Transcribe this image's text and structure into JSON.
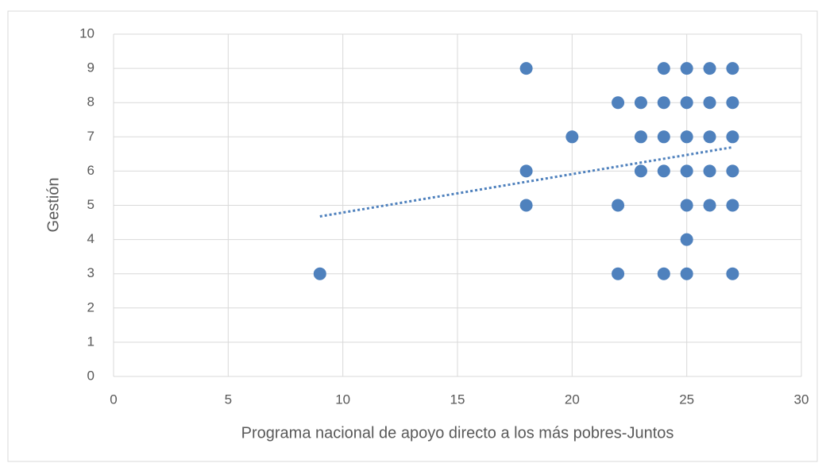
{
  "chart_data": {
    "type": "scatter",
    "xlabel": "Programa nacional de apoyo directo a los más pobres-Juntos",
    "ylabel": "Gestión",
    "x": [
      18,
      24,
      25,
      26,
      27,
      22,
      23,
      24,
      25,
      26,
      27,
      20,
      23,
      24,
      25,
      26,
      27,
      18,
      23,
      24,
      25,
      26,
      27,
      18,
      22,
      25,
      26,
      27,
      25,
      9,
      22,
      24,
      25,
      27
    ],
    "values": [
      9,
      9,
      9,
      9,
      9,
      8,
      8,
      8,
      8,
      8,
      8,
      7,
      7,
      7,
      7,
      7,
      7,
      6,
      6,
      6,
      6,
      6,
      6,
      5,
      5,
      5,
      5,
      5,
      4,
      3,
      3,
      3,
      3,
      3
    ],
    "color": "#4f81bd",
    "trendline": "linear",
    "xlim": [
      0,
      30
    ],
    "xticks": [
      0,
      5,
      10,
      15,
      20,
      25,
      30
    ],
    "ylim": [
      0,
      10
    ],
    "yticks": [
      0,
      1,
      2,
      3,
      4,
      5,
      6,
      7,
      8,
      9,
      10
    ],
    "grid": true
  }
}
